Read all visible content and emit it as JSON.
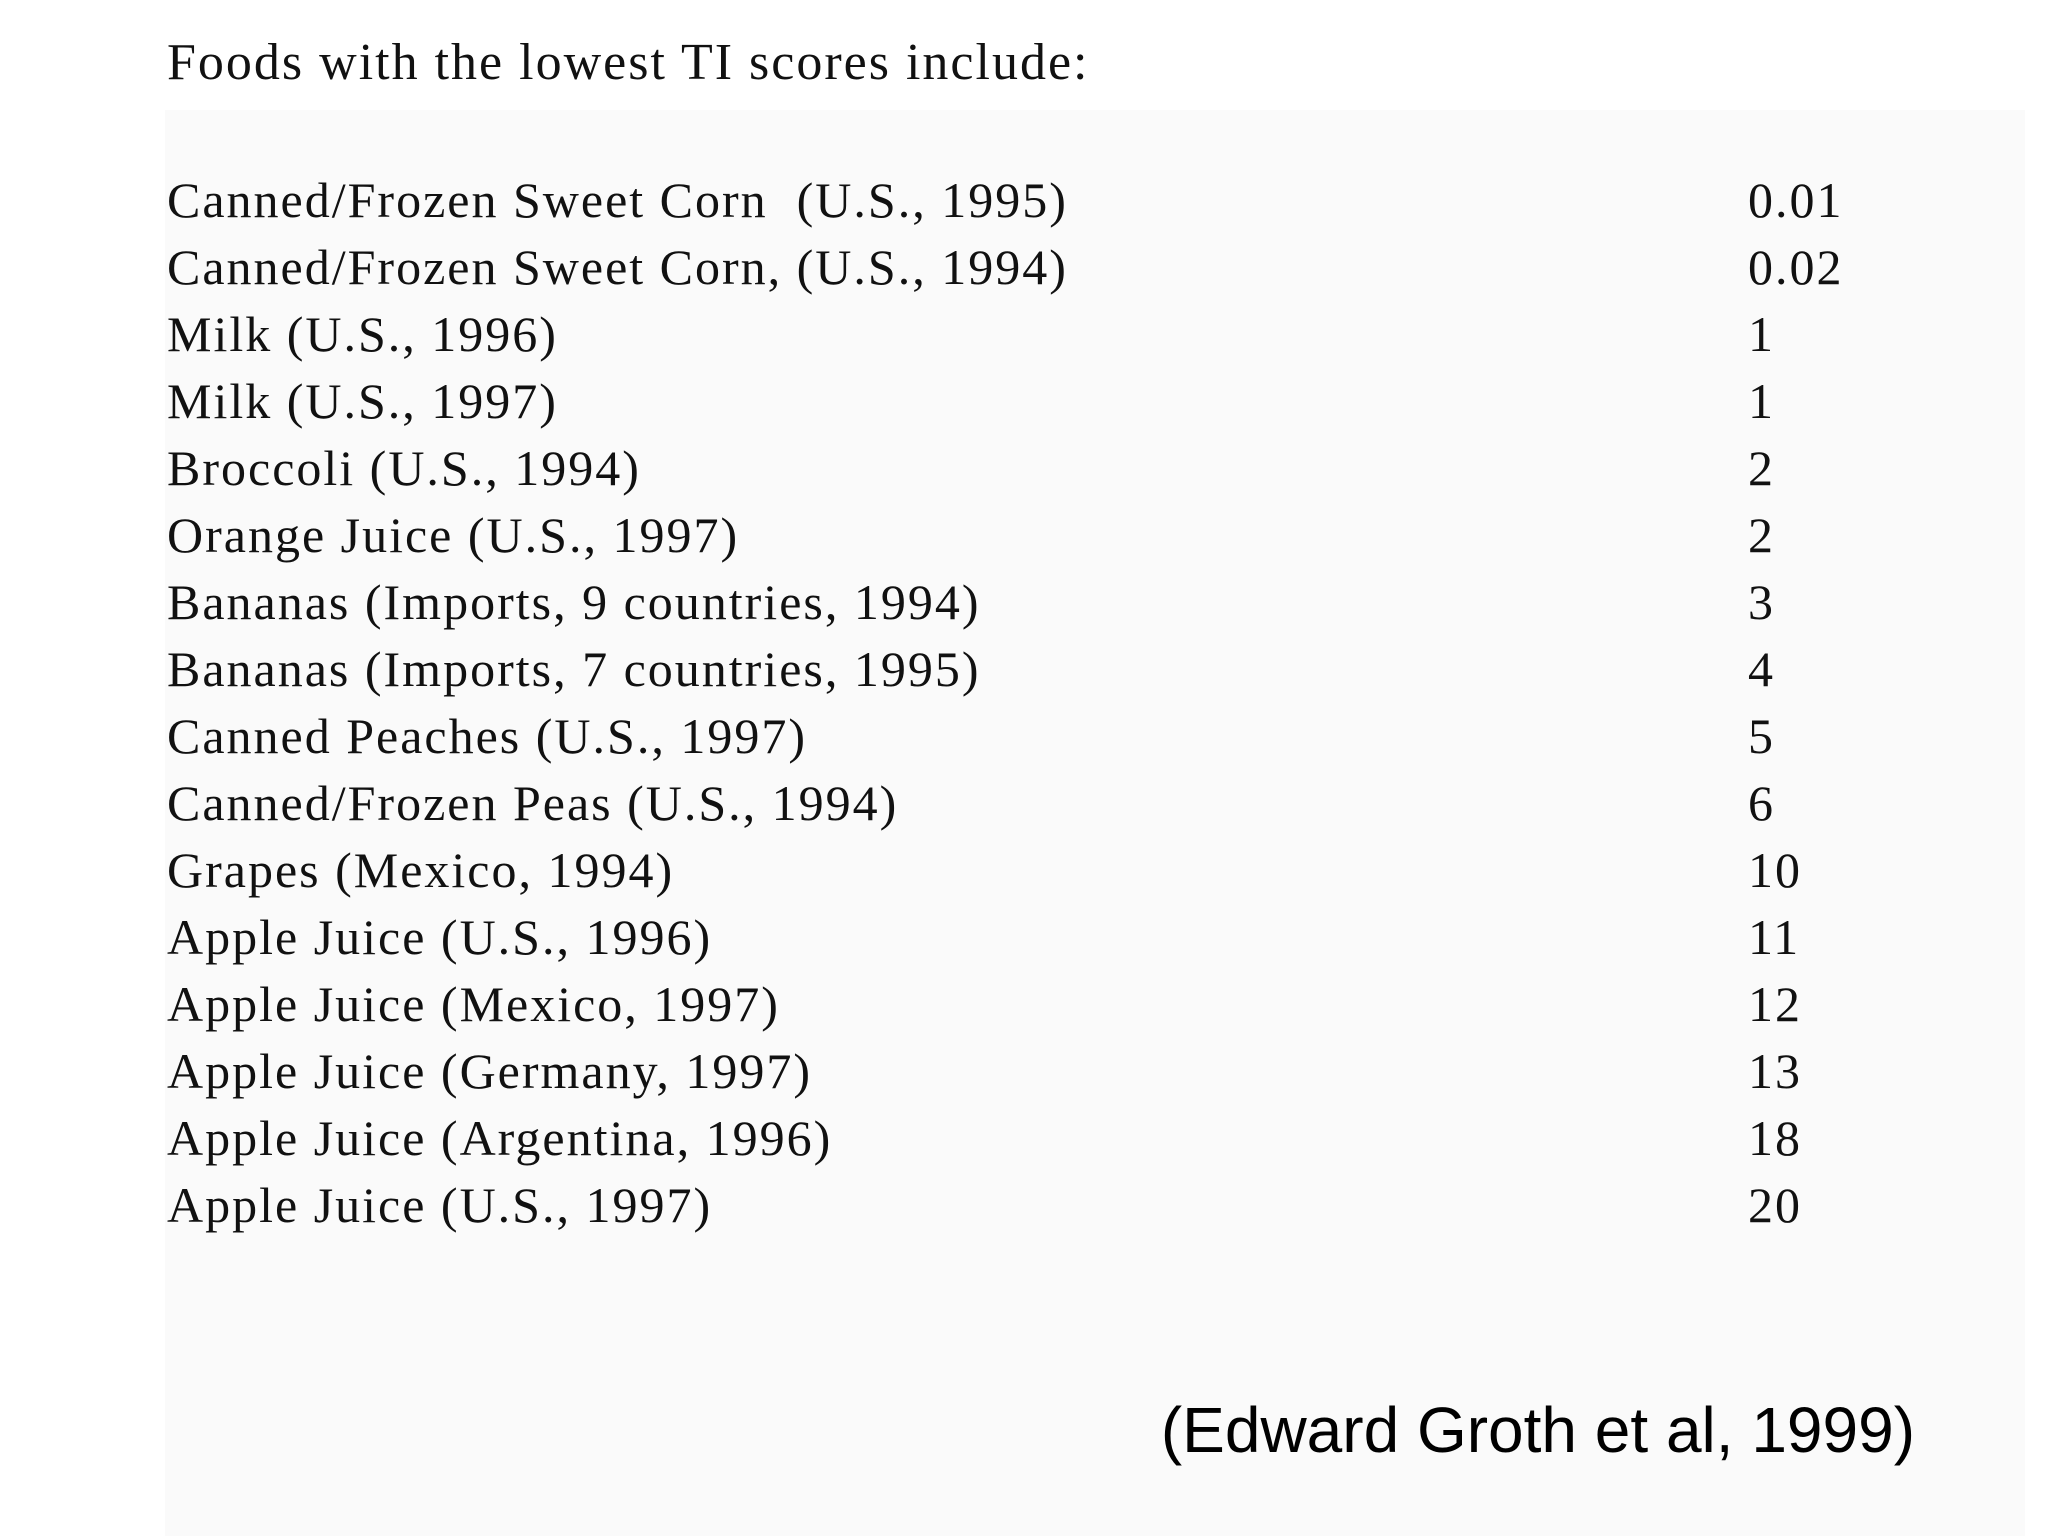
{
  "heading": "Foods with the lowest TI scores include:",
  "table": {
    "rows": [
      [
        "Canned/Frozen Sweet Corn  (U.S., 1995)",
        "0.01"
      ],
      [
        "Canned/Frozen Sweet Corn, (U.S., 1994)",
        "0.02"
      ],
      [
        "Milk (U.S., 1996)",
        "1"
      ],
      [
        "Milk (U.S., 1997)",
        "1"
      ],
      [
        "Broccoli (U.S., 1994)",
        "2"
      ],
      [
        "Orange Juice (U.S., 1997)",
        "2"
      ],
      [
        "Bananas (Imports, 9 countries, 1994)",
        "3"
      ],
      [
        "Bananas (Imports, 7 countries, 1995)",
        "4"
      ],
      [
        "Canned Peaches (U.S., 1997)",
        "5"
      ],
      [
        "Canned/Frozen Peas (U.S., 1994)",
        "6"
      ],
      [
        "Grapes (Mexico, 1994)",
        "10"
      ],
      [
        "Apple Juice (U.S., 1996)",
        "11"
      ],
      [
        "Apple Juice (Mexico, 1997)",
        "12"
      ],
      [
        "Apple Juice (Germany, 1997)",
        "13"
      ],
      [
        "Apple Juice (Argentina, 1996)",
        "18"
      ],
      [
        "Apple Juice (U.S., 1997)",
        "20"
      ]
    ]
  },
  "citation": "(Edward Groth et al, 1999)"
}
